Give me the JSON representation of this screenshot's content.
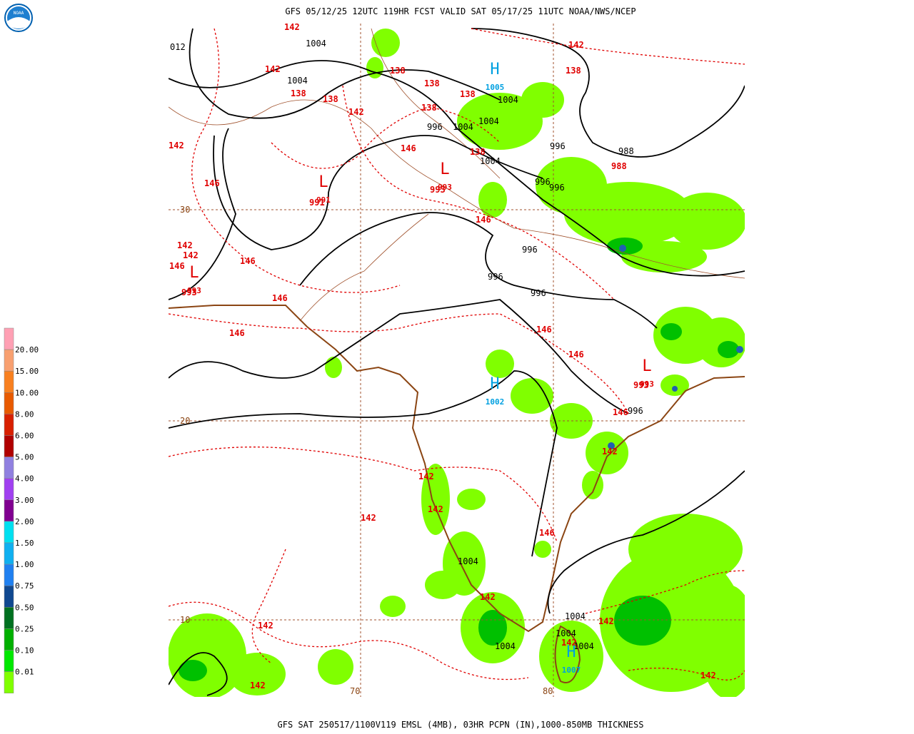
{
  "map": {
    "title": "GFS 05/12/25 12UTC 119HR FCST VALID SAT 05/17/25 11UTC NOAA/NWS/NCEP",
    "caption": "GFS SAT 250517/1100V119 EMSL (4MB), 03HR PCPN (IN),1000-850MB THICKNESS",
    "logo": "NOAA",
    "legend": {
      "labels": [
        "20.00",
        "15.00",
        "10.00",
        "8.00",
        "6.00",
        "5.00",
        "4.00",
        "3.00",
        "2.00",
        "1.50",
        "1.00",
        "0.75",
        "0.50",
        "0.25",
        "0.10",
        "0.01"
      ],
      "colors": [
        "#ffa0b4",
        "#f8a070",
        "#f88020",
        "#e85a00",
        "#d82000",
        "#b00000",
        "#9080e0",
        "#a040f0",
        "#800090",
        "#00e0f0",
        "#10b0f0",
        "#2080f0",
        "#104890",
        "#007020",
        "#00b000",
        "#00e800",
        "#80ff00",
        "#ffffff"
      ]
    },
    "grid_labels": [
      "30",
      "20",
      "10",
      "70",
      "80"
    ],
    "isobar_labels": [
      "012",
      "1004",
      "1004",
      "1004",
      "1004",
      "996",
      "1004",
      "1004",
      "996",
      "988",
      "996",
      "996",
      "996",
      "996",
      "996",
      "996",
      "1004",
      "1004",
      "1004",
      "1004",
      "1004"
    ],
    "thickness_labels": [
      "142",
      "142",
      "142",
      "138",
      "138",
      "138",
      "138",
      "138",
      "138",
      "142",
      "138",
      "146",
      "138",
      "142",
      "146",
      "988",
      "993",
      "991",
      "146",
      "142",
      "142",
      "146",
      "146",
      "993",
      "146",
      "146",
      "146",
      "146",
      "993",
      "146",
      "142",
      "142",
      "142",
      "142",
      "146",
      "142",
      "142",
      "142",
      "142",
      "142",
      "142"
    ],
    "centers": [
      {
        "symbol": "H",
        "value": "1005"
      },
      {
        "symbol": "L",
        "value": "993"
      },
      {
        "symbol": "L",
        "value": "991"
      },
      {
        "symbol": "L",
        "value": "993"
      },
      {
        "symbol": "H",
        "value": "1002"
      },
      {
        "symbol": "L",
        "value": "993"
      },
      {
        "symbol": "H",
        "value": "1007"
      }
    ]
  }
}
